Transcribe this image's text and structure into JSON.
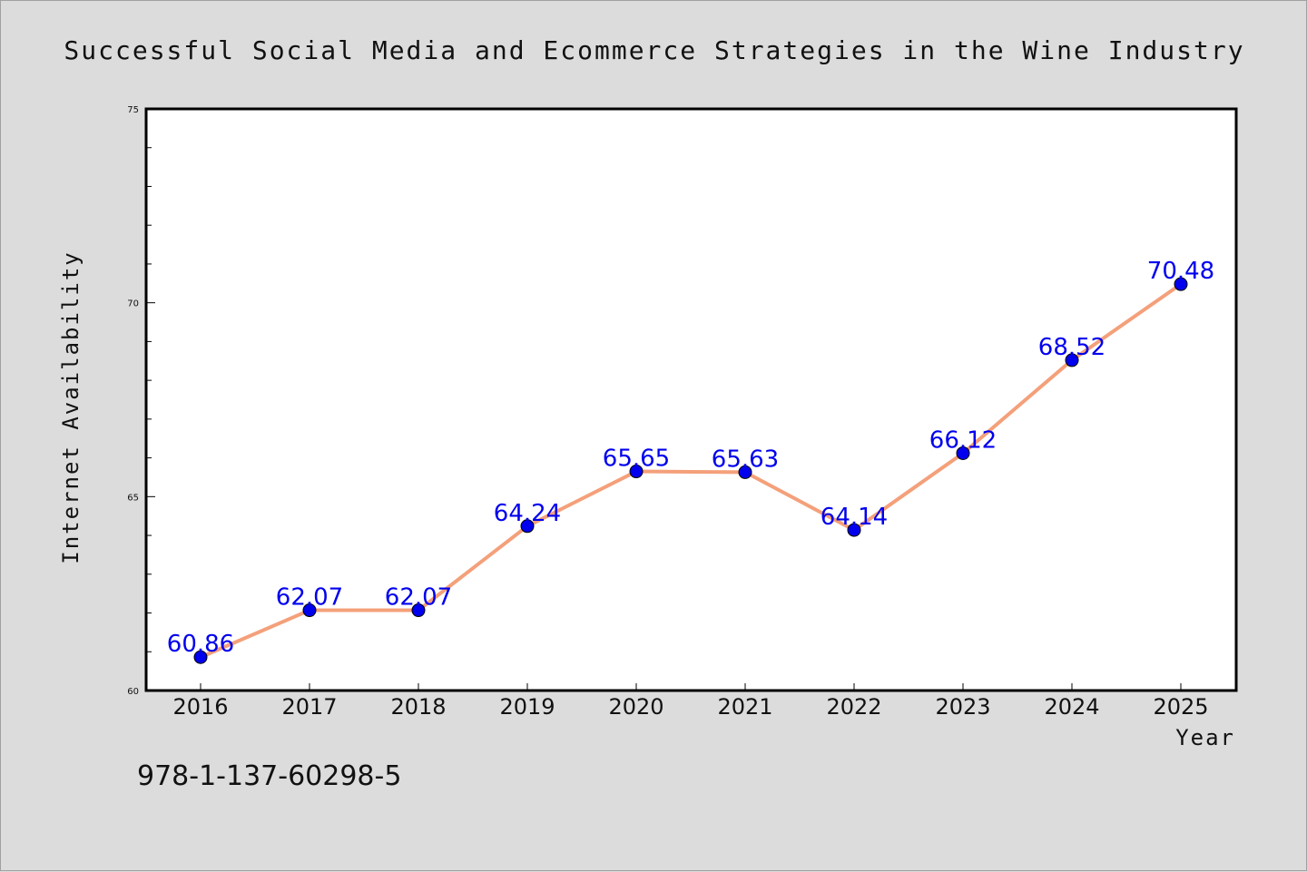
{
  "chart_data": {
    "type": "line",
    "title": "Successful Social Media and Ecommerce Strategies in the Wine Industry",
    "xlabel": "Year",
    "ylabel": "Internet Availability",
    "categories": [
      "2016",
      "2017",
      "2018",
      "2019",
      "2020",
      "2021",
      "2022",
      "2023",
      "2024",
      "2025"
    ],
    "series": [
      {
        "values": [
          60.86,
          62.07,
          62.07,
          64.24,
          65.65,
          65.63,
          64.14,
          66.12,
          68.52,
          70.48
        ]
      }
    ],
    "data_labels": [
      "60.86",
      "62.07",
      "62.07",
      "64.24",
      "65.65",
      "65.63",
      "64.14",
      "66.12",
      "68.52",
      "70.48"
    ],
    "ylim": [
      60,
      75
    ],
    "yticks": [
      "60",
      "65",
      "70",
      "75"
    ],
    "grid": false,
    "colors": {
      "line": "#f4a07a",
      "marker": "#0000ee",
      "label": "#0000ee",
      "background": "#dcdcdc",
      "plot_bg": "#ffffff"
    }
  },
  "footer": {
    "isbn": "978-1-137-60298-5"
  }
}
